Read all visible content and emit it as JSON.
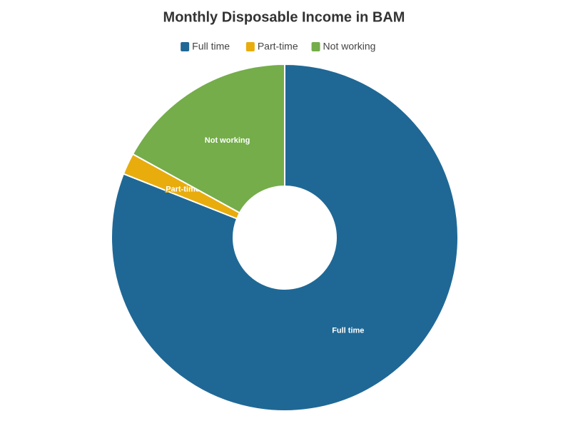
{
  "chart_data": {
    "type": "pie",
    "title": "Monthly Disposable Income in BAM",
    "categories": [
      "Full time",
      "Part-time",
      "Not working"
    ],
    "values": [
      81,
      2,
      17
    ],
    "colors": [
      "#1f6895",
      "#e8ac0d",
      "#74ad4a"
    ],
    "legend": "top"
  }
}
